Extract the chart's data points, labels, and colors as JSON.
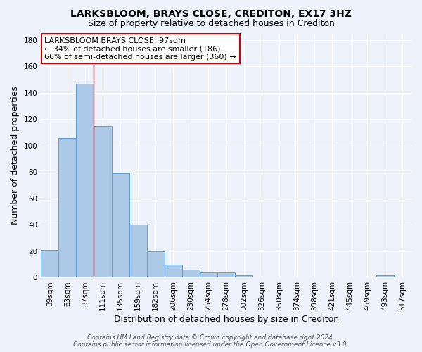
{
  "title": "LARKSBLOOM, BRAYS CLOSE, CREDITON, EX17 3HZ",
  "subtitle": "Size of property relative to detached houses in Crediton",
  "xlabel": "Distribution of detached houses by size in Crediton",
  "ylabel": "Number of detached properties",
  "bar_labels": [
    "39sqm",
    "63sqm",
    "87sqm",
    "111sqm",
    "135sqm",
    "159sqm",
    "182sqm",
    "206sqm",
    "230sqm",
    "254sqm",
    "278sqm",
    "302sqm",
    "326sqm",
    "350sqm",
    "374sqm",
    "398sqm",
    "421sqm",
    "445sqm",
    "469sqm",
    "493sqm",
    "517sqm"
  ],
  "bar_values": [
    21,
    106,
    147,
    115,
    79,
    40,
    20,
    10,
    6,
    4,
    4,
    2,
    0,
    0,
    0,
    0,
    0,
    0,
    0,
    2,
    0
  ],
  "bar_color": "#adc9e8",
  "bar_edge_color": "#5a9fd4",
  "background_color": "#eef2fb",
  "grid_color": "#ffffff",
  "red_line_x": 2.5,
  "annotation_line1": "LARKSBLOOM BRAYS CLOSE: 97sqm",
  "annotation_line2": "← 34% of detached houses are smaller (186)",
  "annotation_line3": "66% of semi-detached houses are larger (360) →",
  "annotation_box_color": "#ffffff",
  "annotation_box_edge": "#cc0000",
  "footer_line1": "Contains HM Land Registry data © Crown copyright and database right 2024.",
  "footer_line2": "Contains public sector information licensed under the Open Government Licence v3.0.",
  "ylim": [
    0,
    185
  ],
  "yticks": [
    0,
    20,
    40,
    60,
    80,
    100,
    120,
    140,
    160,
    180
  ],
  "title_fontsize": 10,
  "subtitle_fontsize": 9,
  "axis_label_fontsize": 9,
  "tick_fontsize": 7.5,
  "annotation_fontsize": 8,
  "footer_fontsize": 6.5
}
